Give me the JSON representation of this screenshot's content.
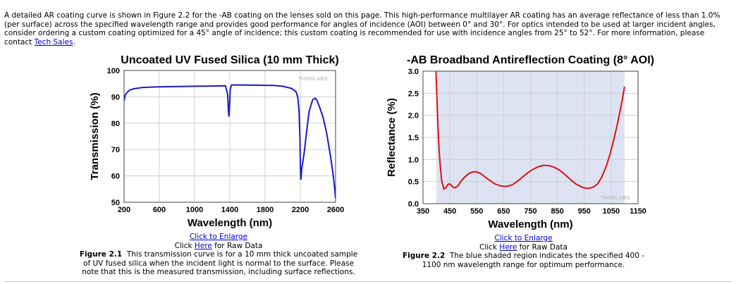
{
  "intro": {
    "text": "A detailed AR coating curve is shown in Figure 2.2 for the -AB coating on the lenses sold on this page. This high-performance multilayer AR coating has an average reflectance of less than 1.0% (per surface) across the specified wavelength range and provides good performance for angles of incidence (AOI) between 0° and 30°. For optics intended to be used at larger incident angles, consider ordering a custom coating optimized for a 45° angle of incidence; this custom coating is recommended for use with incidence angles from 25° to 52°. For more information, please contact ",
    "link": "Tech Sales",
    "end": "."
  },
  "fig1": {
    "enlarge": "Click to Enlarge",
    "raw_prefix": "Click ",
    "raw_link": "Here",
    "raw_suffix": " for Raw Data",
    "label": "Figure 2.1",
    "caption": "This transmission curve is for a 10 mm thick uncoated sample of UV fused silica when the incident light is normal to the surface. Please note that this is the measured transmission, including surface reflections."
  },
  "fig2": {
    "enlarge": "Click to Enlarge",
    "raw_prefix": "Click ",
    "raw_link": "Here",
    "raw_suffix": " for Raw Data",
    "label": "Figure 2.2",
    "caption": "The blue shaded region indicates the specified 400 - 1100 nm wavelength range for optimum performance."
  },
  "chart_data": [
    {
      "type": "line",
      "title": "Uncoated UV Fused Silica (10 mm Thick)",
      "xlabel": "Wavelength (nm)",
      "ylabel": "Transmission (%)",
      "xlim": [
        200,
        2600
      ],
      "ylim": [
        50,
        100
      ],
      "xticks": [
        "200",
        "600",
        "1000",
        "1400",
        "1800",
        "2200",
        "2600"
      ],
      "yticks": [
        "50",
        "60",
        "70",
        "80",
        "90",
        "100"
      ],
      "watermark": "THORLABS",
      "line_color": "#1a1acc",
      "series": [
        {
          "x": [
            200,
            210,
            230,
            260,
            300,
            400,
            500,
            600,
            800,
            1000,
            1200,
            1350,
            1375,
            1385,
            1390,
            1395,
            1405,
            1420,
            1500,
            1700,
            1900,
            2000,
            2100,
            2150,
            2170,
            2185,
            2195,
            2200,
            2205,
            2210,
            2215,
            2225,
            2245,
            2270,
            2300,
            2340,
            2370,
            2390,
            2420,
            2460,
            2500,
            2540,
            2570,
            2590,
            2600
          ],
          "y": [
            88.5,
            90.5,
            91.5,
            92.5,
            93.0,
            93.5,
            93.7,
            93.8,
            93.9,
            94.0,
            94.1,
            94.2,
            91.0,
            84.5,
            82.5,
            85.0,
            93.0,
            94.5,
            94.5,
            94.4,
            94.3,
            94.0,
            93.2,
            92.0,
            90.0,
            85.0,
            75.0,
            65.0,
            58.5,
            60.0,
            62.5,
            64.5,
            69.0,
            76.5,
            84.5,
            88.9,
            89.5,
            88.5,
            86.0,
            82.0,
            76.0,
            68.0,
            61.0,
            55.0,
            51.5
          ]
        }
      ]
    },
    {
      "type": "line",
      "title": "-AB Broadband Antireflection Coating (8° AOI)",
      "xlabel": "Wavelength (nm)",
      "ylabel": "Reflectance (%)",
      "xlim": [
        350,
        1150
      ],
      "ylim": [
        0,
        3
      ],
      "xticks": [
        "350",
        "450",
        "550",
        "650",
        "750",
        "850",
        "950",
        "1050",
        "1150"
      ],
      "yticks": [
        "0.0",
        "0.5",
        "1.0",
        "1.5",
        "2.0",
        "2.5",
        "3.0"
      ],
      "shaded_region": [
        400,
        1100
      ],
      "shade_color": "#dde3f2",
      "watermark": "THORLABS",
      "line_color": "#dd1111",
      "series": [
        {
          "x": [
            397,
            400,
            403,
            406,
            410,
            415,
            420,
            428,
            435,
            442,
            448,
            455,
            462,
            470,
            480,
            490,
            505,
            520,
            535,
            550,
            565,
            580,
            600,
            620,
            640,
            660,
            680,
            700,
            720,
            740,
            760,
            780,
            800,
            820,
            840,
            860,
            880,
            900,
            920,
            940,
            955,
            970,
            985,
            1000,
            1015,
            1030,
            1045,
            1060,
            1075,
            1090,
            1100
          ],
          "y": [
            3.2,
            2.7,
            2.2,
            1.7,
            1.2,
            0.8,
            0.5,
            0.33,
            0.36,
            0.43,
            0.45,
            0.42,
            0.37,
            0.36,
            0.4,
            0.5,
            0.6,
            0.68,
            0.72,
            0.72,
            0.68,
            0.61,
            0.52,
            0.44,
            0.4,
            0.39,
            0.42,
            0.5,
            0.6,
            0.7,
            0.78,
            0.84,
            0.87,
            0.86,
            0.82,
            0.75,
            0.65,
            0.54,
            0.44,
            0.38,
            0.35,
            0.35,
            0.38,
            0.45,
            0.6,
            0.82,
            1.1,
            1.45,
            1.85,
            2.3,
            2.65
          ]
        }
      ]
    }
  ]
}
